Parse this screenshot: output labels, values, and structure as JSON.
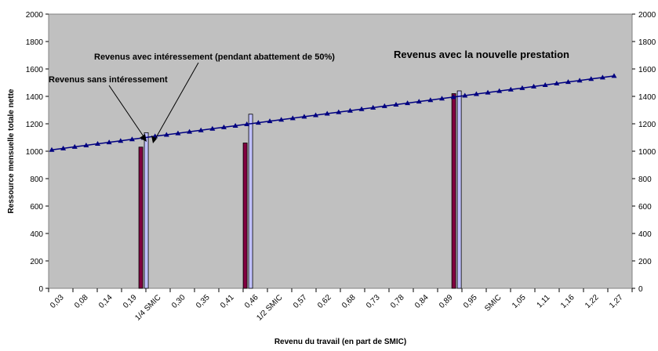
{
  "chart_data": {
    "type": "line",
    "xlabel": "Revenu du travail (en part de SMIC)",
    "ylabel": "Ressource mensuelle totale nette",
    "ylim": [
      0,
      2000
    ],
    "yticks": [
      0,
      200,
      400,
      600,
      800,
      1000,
      1200,
      1400,
      1600,
      1800,
      2000
    ],
    "grid": false,
    "background_color": "#c0c0c0",
    "x_tick_labels": [
      "0,03",
      "0,08",
      "0,14",
      "0,19",
      "1/4 SMIC",
      "0,30",
      "0,35",
      "0,41",
      "0,46",
      "1/2 SMIC",
      "0,57",
      "0,62",
      "0,68",
      "0,73",
      "0,78",
      "0,84",
      "0,89",
      "0,95",
      "SMIC",
      "1,05",
      "1,11",
      "1,16",
      "1,22",
      "1,27"
    ],
    "series": [
      {
        "name": "Revenus avec la nouvelle prestation",
        "type": "line",
        "color": "#000080",
        "marker": "triangle",
        "x_start": 0.03,
        "x_step": 0.0275,
        "values": [
          1010,
          1021,
          1032,
          1043,
          1054,
          1065,
          1076,
          1087,
          1098,
          1109,
          1120,
          1131,
          1142,
          1153,
          1164,
          1175,
          1186,
          1197,
          1208,
          1219,
          1230,
          1241,
          1252,
          1263,
          1274,
          1285,
          1296,
          1307,
          1318,
          1329,
          1340,
          1351,
          1362,
          1373,
          1384,
          1395,
          1406,
          1417,
          1428,
          1439,
          1450,
          1461,
          1472,
          1483,
          1494,
          1505,
          1516,
          1527,
          1538,
          1549
        ]
      },
      {
        "name": "Revenus sans intéressement",
        "type": "bar",
        "color": "#800040",
        "x": [
          0.25,
          0.5,
          1.0
        ],
        "values": [
          1030,
          1060,
          1420
        ]
      },
      {
        "name": "Revenus avec intéressement (pendant abattement de 50%)",
        "type": "bar",
        "color": "#c0c0ff",
        "x": [
          0.25,
          0.5,
          1.0
        ],
        "values": [
          1135,
          1270,
          1440
        ]
      }
    ],
    "annotations": [
      {
        "id": "sans",
        "text": "Revenus sans intéressement"
      },
      {
        "id": "avec",
        "text": "Revenus avec intéressement (pendant abattement de 50%)"
      },
      {
        "id": "nouvelle",
        "text": "Revenus avec la nouvelle prestation"
      }
    ]
  }
}
